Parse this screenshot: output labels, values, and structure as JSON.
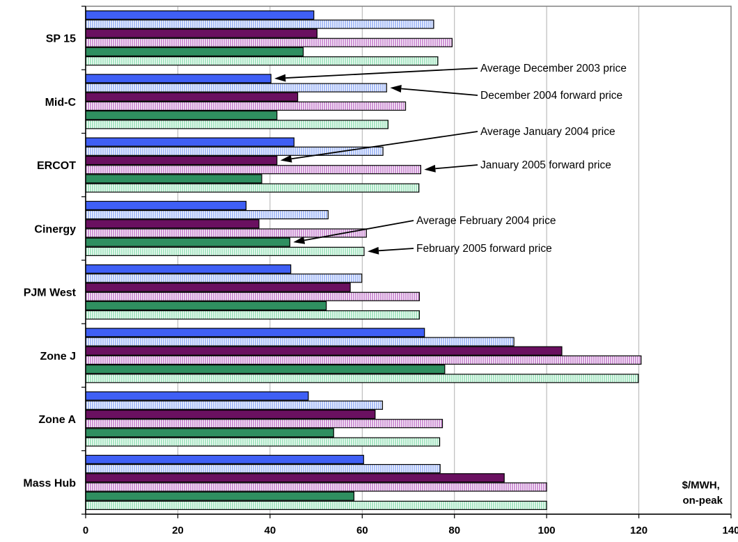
{
  "chart_data": {
    "type": "bar",
    "orientation": "horizontal",
    "categories": [
      "SP 15",
      "Mid-C",
      "ERCOT",
      "Cinergy",
      "PJM West",
      "Zone J",
      "Zone A",
      "Mass Hub"
    ],
    "series": [
      {
        "fill": "#3f5ff5",
        "pattern": "solid",
        "values": [
          49.5,
          40.2,
          45.2,
          34.8,
          44.5,
          73.5,
          48.3,
          60.3
        ]
      },
      {
        "fill": "#a9bef7",
        "pattern": "vstripe",
        "values": [
          75.5,
          65.3,
          64.5,
          52.6,
          59.9,
          92.9,
          64.4,
          76.9
        ]
      },
      {
        "fill": "#6a1060",
        "pattern": "solid",
        "values": [
          50.2,
          46.0,
          41.5,
          37.6,
          57.4,
          103.3,
          62.8,
          90.8
        ]
      },
      {
        "fill": "#cf94d6",
        "pattern": "vstripe",
        "values": [
          79.5,
          69.4,
          72.7,
          60.9,
          72.4,
          120.5,
          77.4,
          100.0
        ]
      },
      {
        "fill": "#2f8f60",
        "pattern": "solid",
        "values": [
          47.2,
          41.5,
          38.2,
          44.3,
          52.2,
          77.9,
          53.8,
          58.2
        ]
      },
      {
        "fill": "#a8e6c4",
        "pattern": "vstripe",
        "values": [
          76.4,
          65.6,
          72.3,
          60.4,
          72.4,
          119.9,
          76.8,
          100.0
        ]
      }
    ],
    "xlim": [
      0,
      140
    ],
    "xticks": [
      "0",
      "20",
      "40",
      "60",
      "80",
      "100",
      "120",
      "140"
    ],
    "xtick_values": [
      0,
      20,
      40,
      60,
      80,
      100,
      120,
      140
    ],
    "grid": "vertical",
    "unit_label_line1": "$/MWH,",
    "unit_label_line2": "on-peak",
    "annotations": [
      {
        "text": "Average December 2003 price",
        "category": 1,
        "series": 0,
        "value": 40.2
      },
      {
        "text": "December 2004 forward price",
        "category": 1,
        "series": 1,
        "value": 65.3
      },
      {
        "text": "Average January 2004 price",
        "category": 2,
        "series": 2,
        "value": 41.5
      },
      {
        "text": "January 2005 forward price",
        "category": 2,
        "series": 3,
        "value": 72.7
      },
      {
        "text": "Average February 2004 price",
        "category": 3,
        "series": 4,
        "value": 44.3
      },
      {
        "text": "February 2005 forward price",
        "category": 3,
        "series": 5,
        "value": 60.4
      }
    ]
  }
}
